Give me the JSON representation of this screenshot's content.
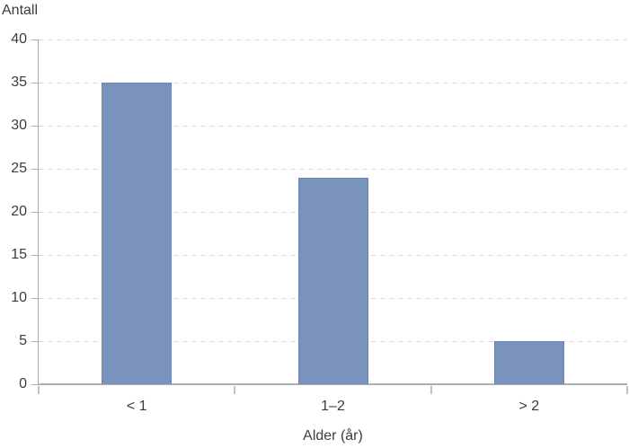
{
  "chart_data": {
    "type": "bar",
    "title": "",
    "y_axis_title": "Antall",
    "x_axis_title": "Alder (år)",
    "categories": [
      "< 1",
      "1–2",
      "> 2"
    ],
    "values": [
      35,
      24,
      5
    ],
    "ylim": [
      0,
      40
    ],
    "ytick_step": 5,
    "ytick_labels": [
      "0",
      "5",
      "10",
      "15",
      "20",
      "25",
      "30",
      "35",
      "40"
    ],
    "grid": {
      "horizontal": true,
      "style": "dashed"
    },
    "legend_position": "none",
    "colors": {
      "bar_fill": "#7A93BD",
      "bar_border": "#6C86B1",
      "gridline": "#DBDBDB",
      "axis_line": "#AFAFAF",
      "tick": "#A8A8A8",
      "xtick": "#C2C2C2",
      "text": "#3C3C3C",
      "background": "#FFFFFF"
    }
  }
}
